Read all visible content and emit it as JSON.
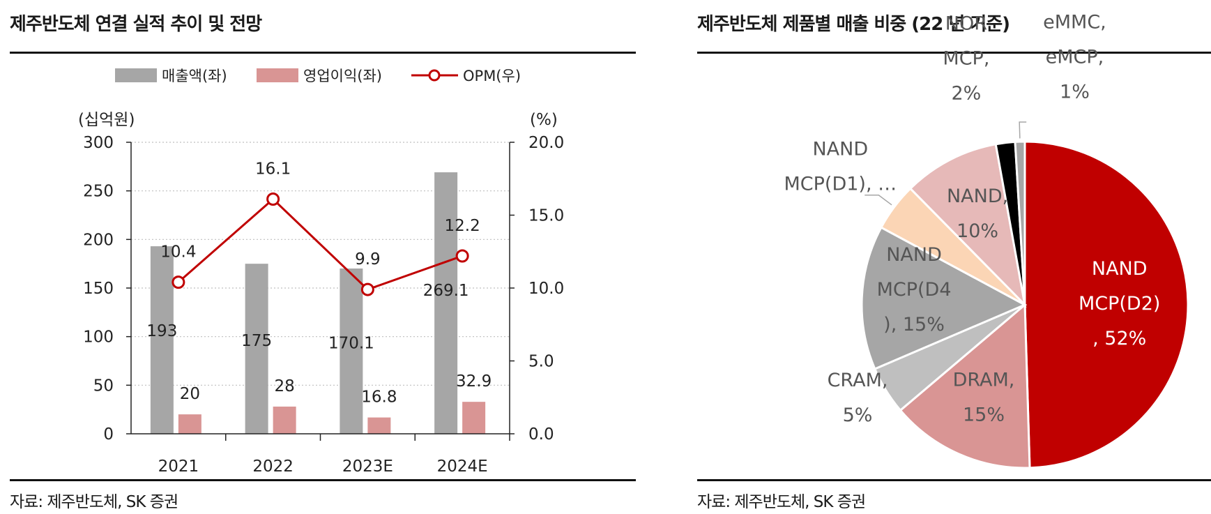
{
  "left": {
    "title": "제주반도체 연결 실적 추이 및 전망",
    "source": "자료: 제주반도체, SK 증권"
  },
  "right": {
    "title": "제주반도체 제품별 매출 비중 (22 년 기준)",
    "source": "자료: 제주반도체, SK 증권"
  },
  "colors": {
    "revenue": "#a6a6a6",
    "op_income": "#d99594",
    "opm": "#c00000",
    "nand_d2": "#c00000",
    "dram": "#d99594",
    "cram": "#bfbfbf",
    "nand_d4": "#a6a6a6",
    "nand_d1": "#fbd5b5",
    "nand": "#e6b9b8",
    "nor_mcp": "#000000",
    "emmc": "#a6a6a6"
  },
  "chart_data": [
    {
      "type": "bar",
      "categories": [
        "2021",
        "2022",
        "2023E",
        "2024E"
      ],
      "series": [
        {
          "name": "매출액(좌)",
          "axis": "left",
          "kind": "bar",
          "values": [
            193,
            175,
            170.1,
            269.1
          ],
          "labels": [
            "193",
            "175",
            "170.1",
            "269.1"
          ]
        },
        {
          "name": "영업이익(좌)",
          "axis": "left",
          "kind": "bar",
          "values": [
            20,
            28,
            16.8,
            32.9
          ],
          "labels": [
            "20",
            "28",
            "16.8",
            "32.9"
          ]
        },
        {
          "name": "OPM(우)",
          "axis": "right",
          "kind": "line",
          "values": [
            10.4,
            16.1,
            9.9,
            12.2
          ],
          "labels": [
            "10.4",
            "16.1",
            "9.9",
            "12.2"
          ]
        }
      ],
      "ylabel_left": "(십억원)",
      "ylabel_right": "(%)",
      "ylim_left": [
        0,
        300
      ],
      "ylim_right": [
        0,
        20
      ],
      "yticks_left": [
        "0",
        "50",
        "100",
        "150",
        "200",
        "250",
        "300"
      ],
      "yticks_right": [
        "0.0",
        "5.0",
        "10.0",
        "15.0",
        "20.0"
      ],
      "grid": "horizontal dotted",
      "legend_position": "top"
    },
    {
      "type": "pie",
      "start": "12 o'clock, clockwise",
      "slices": [
        {
          "label": "NAND MCP(D2), 52%",
          "lines": [
            "NAND",
            "MCP(D2)",
            ", 52%"
          ],
          "value": 52
        },
        {
          "label": "DRAM, 15%",
          "lines": [
            "DRAM,",
            "15%"
          ],
          "value": 15
        },
        {
          "label": "CRAM, 5%",
          "lines": [
            "CRAM,",
            "5%"
          ],
          "value": 5
        },
        {
          "label": "NAND MCP(D4), 15%",
          "lines": [
            "NAND",
            "MCP(D4",
            "), 15%"
          ],
          "value": 15
        },
        {
          "label": "NAND MCP(D1), …",
          "lines": [
            "NAND",
            "MCP(D1), …"
          ],
          "value": 5
        },
        {
          "label": "NAND, 10%",
          "lines": [
            "NAND,",
            "10%"
          ],
          "value": 10
        },
        {
          "label": "NOR MCP, 2%",
          "lines": [
            "NOR",
            "MCP,",
            "2%"
          ],
          "value": 2
        },
        {
          "label": "eMMC, eMCP, 1%",
          "lines": [
            "eMMC,",
            "eMCP,",
            "1%"
          ],
          "value": 1
        }
      ]
    }
  ]
}
